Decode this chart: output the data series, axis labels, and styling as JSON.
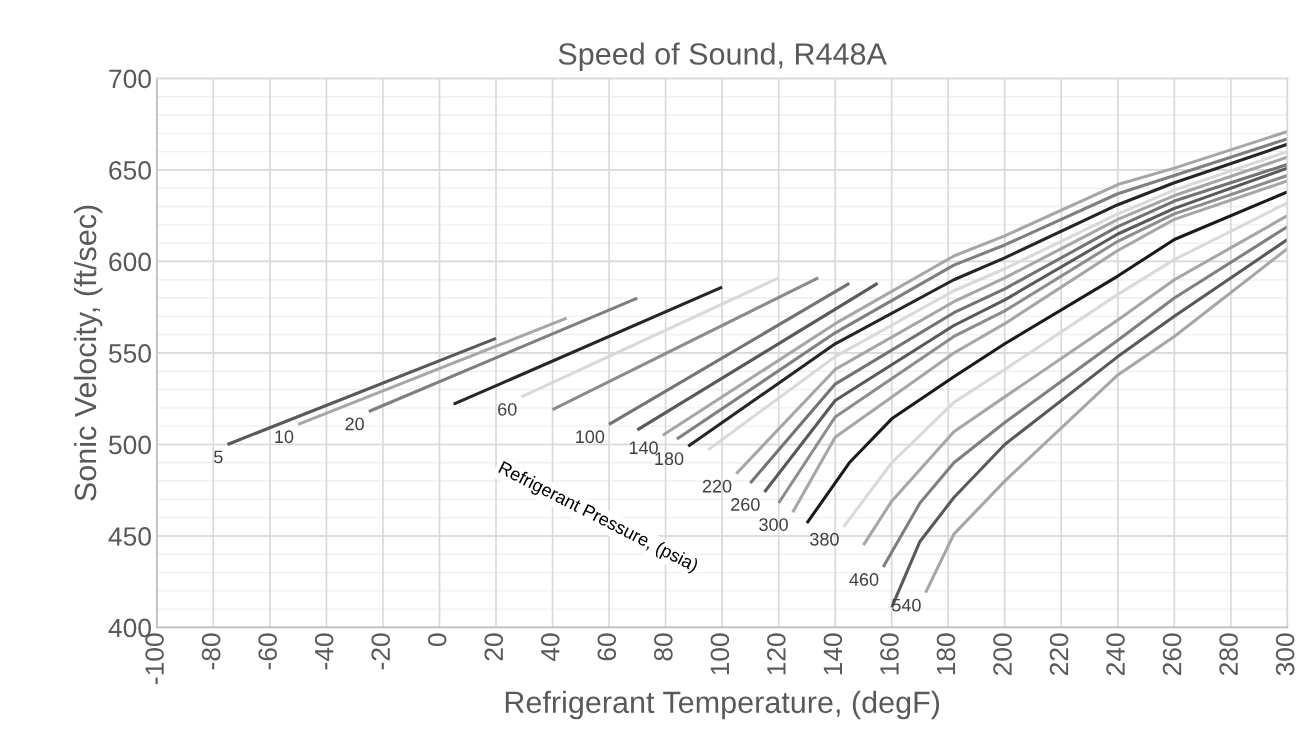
{
  "chart_data": {
    "type": "line",
    "title": "Speed of Sound, R448A",
    "xlabel": "Refrigerant Temperature, (degF)",
    "ylabel": "Sonic Velocity, (ft/sec)",
    "xlim": [
      -100,
      300
    ],
    "xticks": [
      -100,
      -80,
      -60,
      -40,
      -20,
      0,
      20,
      40,
      60,
      80,
      100,
      120,
      140,
      160,
      180,
      200,
      220,
      240,
      260,
      280,
      300
    ],
    "ylim": [
      400,
      700
    ],
    "yticks": [
      400,
      450,
      500,
      550,
      600,
      650,
      700
    ],
    "grid": true,
    "legend": false,
    "marker": "none",
    "line_style": "solid",
    "annotations": [
      "Refrigerant Pressure, (psia)"
    ],
    "series": [
      {
        "name": "5",
        "color": "#595959",
        "x": [
          -75,
          20
        ],
        "values": [
          500,
          558
        ]
      },
      {
        "name": "10",
        "color": "#a6a6a6",
        "x": [
          -50,
          45
        ],
        "values": [
          511,
          569
        ]
      },
      {
        "name": "20",
        "color": "#7f7f7f",
        "x": [
          -25,
          70
        ],
        "values": [
          518,
          580
        ]
      },
      {
        "color": "#262626",
        "x": [
          5,
          100
        ],
        "values": [
          522,
          586
        ]
      },
      {
        "name": "60",
        "color": "#d9d9d9",
        "x": [
          29,
          120
        ],
        "values": [
          526,
          591
        ]
      },
      {
        "color": "#8c8c8c",
        "x": [
          40,
          134
        ],
        "values": [
          519,
          591
        ]
      },
      {
        "name": "100",
        "color": "#737373",
        "x": [
          60,
          145
        ],
        "values": [
          511,
          588
        ]
      },
      {
        "color": "#595959",
        "x": [
          70,
          155
        ],
        "values": [
          508,
          588
        ]
      },
      {
        "name": "140",
        "color": "#a6a6a6",
        "x": [
          79,
          140,
          182,
          200,
          240,
          260,
          300
        ],
        "values": [
          505,
          566,
          603,
          614,
          642,
          651,
          671
        ]
      },
      {
        "color": "#7f7f7f",
        "x": [
          84,
          140,
          182,
          200,
          240,
          260,
          300
        ],
        "values": [
          503,
          561,
          598,
          609,
          637,
          647,
          667
        ]
      },
      {
        "name": "180",
        "color": "#262626",
        "x": [
          88,
          140,
          182,
          200,
          240,
          260,
          300
        ],
        "values": [
          499,
          555,
          590,
          602,
          631,
          643,
          664
        ]
      },
      {
        "color": "#d9d9d9",
        "x": [
          95,
          140,
          182,
          200,
          240,
          260,
          300
        ],
        "values": [
          497,
          548,
          584,
          596,
          626,
          639,
          660
        ]
      },
      {
        "name": "220",
        "color": "#a6a6a6",
        "x": [
          105,
          140,
          182,
          200,
          240,
          260,
          300
        ],
        "values": [
          484,
          541,
          578,
          591,
          623,
          636,
          657
        ]
      },
      {
        "color": "#737373",
        "x": [
          110,
          140,
          182,
          200,
          240,
          260,
          300
        ],
        "values": [
          479,
          533,
          572,
          585,
          619,
          633,
          653
        ]
      },
      {
        "name": "260",
        "color": "#595959",
        "x": [
          115,
          140,
          182,
          200,
          240,
          260,
          300
        ],
        "values": [
          474,
          524,
          565,
          579,
          615,
          629,
          651
        ]
      },
      {
        "color": "#8c8c8c",
        "x": [
          120,
          140,
          182,
          200,
          240,
          260,
          300
        ],
        "values": [
          468,
          515,
          559,
          573,
          611,
          626,
          647
        ]
      },
      {
        "name": "300",
        "color": "#a6a6a6",
        "x": [
          125,
          140,
          182,
          200,
          240,
          260,
          300
        ],
        "values": [
          463,
          504,
          550,
          566,
          606,
          623,
          644
        ]
      },
      {
        "color": "#1a1a1a",
        "x": [
          130,
          145,
          160,
          182,
          200,
          240,
          260,
          300
        ],
        "values": [
          457,
          490,
          514,
          537,
          555,
          592,
          612,
          638
        ]
      },
      {
        "name": "380",
        "color": "#d9d9d9",
        "x": [
          143,
          160,
          182,
          200,
          240,
          260,
          300
        ],
        "values": [
          455,
          490,
          523,
          541,
          582,
          601,
          632
        ]
      },
      {
        "color": "#a6a6a6",
        "x": [
          150,
          160,
          182,
          200,
          240,
          260,
          300
        ],
        "values": [
          445,
          469,
          507,
          526,
          568,
          590,
          625
        ]
      },
      {
        "name": "460",
        "color": "#7f7f7f",
        "x": [
          157,
          170,
          182,
          200,
          240,
          260,
          300
        ],
        "values": [
          433,
          468,
          490,
          512,
          557,
          580,
          619
        ]
      },
      {
        "color": "#595959",
        "x": [
          160,
          170,
          182,
          200,
          240,
          260,
          300
        ],
        "values": [
          411,
          447,
          471,
          500,
          548,
          570,
          612
        ]
      },
      {
        "name": "540",
        "color": "#a6a6a6",
        "x": [
          172,
          182,
          200,
          240,
          260,
          300
        ],
        "values": [
          419,
          451,
          480,
          538,
          559,
          607
        ]
      }
    ]
  }
}
